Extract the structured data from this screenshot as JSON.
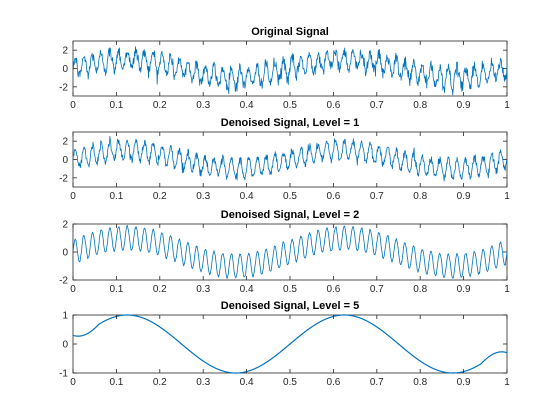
{
  "chart_data": [
    {
      "type": "line",
      "title": "Original Signal",
      "xlim": [
        0,
        1
      ],
      "ylim": [
        -3,
        3
      ],
      "xticks": [
        0,
        0.1,
        0.2,
        0.3,
        0.4,
        0.5,
        0.6,
        0.7,
        0.8,
        0.9,
        1
      ],
      "xtick_labels": [
        "0",
        "0.1",
        "0.2",
        "0.3",
        "0.4",
        "0.5",
        "0.6",
        "0.7",
        "0.8",
        "0.9",
        "1"
      ],
      "yticks": [
        -2,
        0,
        2
      ],
      "ytick_labels": [
        "-2",
        "0",
        "2"
      ],
      "grid": false,
      "color": "#0072BD",
      "series": [
        {
          "components": [
            {
              "amplitude": 1.0,
              "frequency_hz": 2
            },
            {
              "amplitude": 1.0,
              "frequency_hz": 50
            }
          ],
          "noise_std": 0.35
        }
      ]
    },
    {
      "type": "line",
      "title": "Denoised Signal, Level = 1",
      "xlim": [
        0,
        1
      ],
      "ylim": [
        -3,
        3
      ],
      "xticks": [
        0,
        0.1,
        0.2,
        0.3,
        0.4,
        0.5,
        0.6,
        0.7,
        0.8,
        0.9,
        1
      ],
      "xtick_labels": [
        "0",
        "0.1",
        "0.2",
        "0.3",
        "0.4",
        "0.5",
        "0.6",
        "0.7",
        "0.8",
        "0.9",
        "1"
      ],
      "yticks": [
        -2,
        0,
        2
      ],
      "ytick_labels": [
        "-2",
        "0",
        "2"
      ],
      "grid": false,
      "color": "#0072BD",
      "series": [
        {
          "components": [
            {
              "amplitude": 1.0,
              "frequency_hz": 2
            },
            {
              "amplitude": 1.0,
              "frequency_hz": 50
            }
          ],
          "noise_std": 0.22
        }
      ]
    },
    {
      "type": "line",
      "title": "Denoised Signal, Level = 2",
      "xlim": [
        0,
        1
      ],
      "ylim": [
        -2,
        2
      ],
      "xticks": [
        0,
        0.1,
        0.2,
        0.3,
        0.4,
        0.5,
        0.6,
        0.7,
        0.8,
        0.9,
        1
      ],
      "xtick_labels": [
        "0",
        "0.1",
        "0.2",
        "0.3",
        "0.4",
        "0.5",
        "0.6",
        "0.7",
        "0.8",
        "0.9",
        "1"
      ],
      "yticks": [
        -2,
        0,
        2
      ],
      "ytick_labels": [
        "-2",
        "0",
        "2"
      ],
      "grid": false,
      "color": "#0072BD",
      "series": [
        {
          "components": [
            {
              "amplitude": 1.0,
              "frequency_hz": 2
            },
            {
              "amplitude": 0.85,
              "frequency_hz": 50
            }
          ],
          "noise_std": 0.04
        }
      ]
    },
    {
      "type": "line",
      "title": "Denoised Signal, Level = 5",
      "xlim": [
        0,
        1
      ],
      "ylim": [
        -1,
        1
      ],
      "xticks": [
        0,
        0.1,
        0.2,
        0.3,
        0.4,
        0.5,
        0.6,
        0.7,
        0.8,
        0.9,
        1
      ],
      "xtick_labels": [
        "0",
        "0.1",
        "0.2",
        "0.3",
        "0.4",
        "0.5",
        "0.6",
        "0.7",
        "0.8",
        "0.9",
        "1"
      ],
      "yticks": [
        -1,
        0,
        1
      ],
      "ytick_labels": [
        "-1",
        "0",
        "1"
      ],
      "grid": false,
      "color": "#0072BD",
      "series": [
        {
          "components": [
            {
              "amplitude": 1.0,
              "frequency_hz": 2
            }
          ],
          "noise_std": 0.0,
          "edge_values": {
            "start": 0.3,
            "end": -0.3
          }
        }
      ]
    }
  ]
}
